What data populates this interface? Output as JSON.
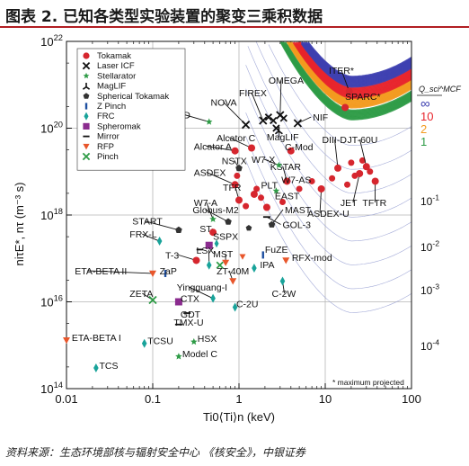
{
  "header": {
    "title": "图表 2. 已知各类型实验装置的聚变三乘积数据"
  },
  "footer": {
    "source": "资料来源：生态环境部核与辐射安全中心 《核安全》，中银证券"
  },
  "chart_data": {
    "type": "scatter",
    "xscale": "log",
    "yscale": "log",
    "xlim": [
      0.01,
      100
    ],
    "ylim": [
      100000000000000.0,
      1e+22
    ],
    "xlabel": "Ti0⟨Ti⟩n (keV)",
    "ylabel": "niτE*, nτ (m⁻³ s)",
    "x_ticks": [
      "0.01",
      "0.1",
      "1",
      "10",
      "100"
    ],
    "y_ticks": [
      "10^14",
      "10^16",
      "10^18",
      "10^20",
      "10^22"
    ],
    "right_ticks": [
      "10^-4",
      "10^-3",
      "10^-2",
      "10^-1"
    ],
    "q_legend": {
      "label": "Q_sci^MCF",
      "values": [
        "∞",
        "10",
        "2",
        "1"
      ],
      "colors": [
        "#3d3fb0",
        "#e8242b",
        "#f39a1e",
        "#2e9b46"
      ]
    },
    "note": "* maximum projected",
    "legend": [
      {
        "name": "Tokamak",
        "marker": "circle",
        "color": "#d6262e"
      },
      {
        "name": "Laser ICF",
        "marker": "x",
        "color": "#111111"
      },
      {
        "name": "Stellarator",
        "marker": "star",
        "color": "#2e9b46"
      },
      {
        "name": "MagLIF",
        "marker": "tri",
        "color": "#111111"
      },
      {
        "name": "Spherical Tokamak",
        "marker": "pentagon",
        "color": "#333333"
      },
      {
        "name": "Z Pinch",
        "marker": "vbar",
        "color": "#1e4fa0"
      },
      {
        "name": "FRC",
        "marker": "diamond",
        "color": "#19a39a"
      },
      {
        "name": "Spheromak",
        "marker": "square",
        "color": "#8b2c8f"
      },
      {
        "name": "Mirror",
        "marker": "dash",
        "color": "#111111"
      },
      {
        "name": "RFP",
        "marker": "tridown",
        "color": "#e8562b"
      },
      {
        "name": "Pinch",
        "marker": "x",
        "color": "#2e9b46"
      }
    ],
    "points": [
      {
        "label": "ITER*",
        "x": 19,
        "y": 7e+20,
        "type": "Tokamak",
        "lx": 11,
        "ly": 1.8e+21,
        "anchor": "start"
      },
      {
        "label": "SPARC*",
        "x": 17,
        "y": 3e+20,
        "type": "Tokamak",
        "lx": 17,
        "ly": 4.5e+20,
        "anchor": "start"
      },
      {
        "label": "JT-60U",
        "x": 30,
        "y": 1.3e+19,
        "type": "Tokamak",
        "lx": 18,
        "ly": 4.5e+19,
        "anchor": "start"
      },
      {
        "label": "JET",
        "x": 25,
        "y": 9e+18,
        "type": "Tokamak",
        "lx": 15,
        "ly": 1.6e+18,
        "anchor": "start"
      },
      {
        "label": "TFTR",
        "x": 38,
        "y": 6e+18,
        "type": "Tokamak",
        "lx": 27,
        "ly": 1.6e+18,
        "anchor": "start"
      },
      {
        "label": "DIII-D",
        "x": 14,
        "y": 1.2e+19,
        "type": "Tokamak",
        "lx": 9.2,
        "ly": 4.5e+19,
        "anchor": "start"
      },
      {
        "label": "ASDEX-U",
        "x": 9,
        "y": 4e+18,
        "type": "Tokamak",
        "lx": 6.2,
        "ly": 9e+17,
        "anchor": "start"
      },
      {
        "label": "C-Mod",
        "x": 4,
        "y": 3e+19,
        "type": "Tokamak",
        "lx": 3.4,
        "ly": 3.1e+19,
        "anchor": "start"
      },
      {
        "label": "KSTAR",
        "x": 3.6,
        "y": 6e+18,
        "type": "Tokamak",
        "lx": 2.3,
        "ly": 1.1e+19,
        "anchor": "start"
      },
      {
        "label": "W7-AS",
        "x": 2.7,
        "y": 3.6e+18,
        "type": "Stellarator",
        "lx": 3.1,
        "ly": 5.5e+18,
        "anchor": "start"
      },
      {
        "label": "EAST",
        "x": 2.1,
        "y": 1.5e+18,
        "type": "Tokamak",
        "lx": 2.6,
        "ly": 2.3e+18,
        "anchor": "start"
      },
      {
        "label": "MAST",
        "x": 2.4,
        "y": 6e+17,
        "type": "Spherical Tokamak",
        "lx": 3.4,
        "ly": 1.1e+18,
        "anchor": "start"
      },
      {
        "label": "W7-X",
        "x": 2.9,
        "y": 1.4e+19,
        "type": "Stellarator",
        "lx": 1.4,
        "ly": 1.6e+19,
        "anchor": "start"
      },
      {
        "label": "NSTX",
        "x": 1.0,
        "y": 1.2e+19,
        "type": "Spherical Tokamak",
        "lx": 0.63,
        "ly": 1.5e+19,
        "anchor": "start"
      },
      {
        "label": "PLT",
        "x": 1.5,
        "y": 3e+18,
        "type": "Tokamak",
        "lx": 1.8,
        "ly": 4.1e+18,
        "anchor": "start"
      },
      {
        "label": "ASDEX",
        "x": 0.9,
        "y": 5e+18,
        "type": "Tokamak",
        "lx": 0.3,
        "ly": 8e+18,
        "anchor": "start"
      },
      {
        "label": "TFR",
        "x": 1.0,
        "y": 2.2e+18,
        "type": "Tokamak",
        "lx": 0.65,
        "ly": 3.6e+18,
        "anchor": "start"
      },
      {
        "label": "W7-A",
        "x": 0.5,
        "y": 8e+17,
        "type": "Stellarator",
        "lx": 0.3,
        "ly": 1.6e+18,
        "anchor": "start"
      },
      {
        "label": "Globus-M2",
        "x": 0.75,
        "y": 7e+17,
        "type": "Spherical Tokamak",
        "lx": 0.29,
        "ly": 1.1e+18,
        "anchor": "start"
      },
      {
        "label": "Alcator C",
        "x": 1.4,
        "y": 3.5e+19,
        "type": "Tokamak",
        "lx": 0.55,
        "ly": 5e+19,
        "anchor": "start"
      },
      {
        "label": "Alcator A",
        "x": 0.9,
        "y": 3e+19,
        "type": "Tokamak",
        "lx": 0.3,
        "ly": 3.2e+19,
        "anchor": "start"
      },
      {
        "label": "MagLIF",
        "x": 2.9,
        "y": 9e+19,
        "type": "MagLIF",
        "lx": 2.1,
        "ly": 5.2e+19,
        "anchor": "start"
      },
      {
        "label": "NIF",
        "x": 4.8,
        "y": 1.3e+20,
        "type": "Laser ICF",
        "lx": 7.2,
        "ly": 1.5e+20,
        "anchor": "start"
      },
      {
        "label": "OMEGA",
        "x": 3.0,
        "y": 2e+20,
        "type": "Laser ICF",
        "lx": 2.2,
        "ly": 1.05e+21,
        "anchor": "start"
      },
      {
        "label": "FIREX",
        "x": 1.9,
        "y": 1.5e+20,
        "type": "Laser ICF",
        "lx": 1.0,
        "ly": 5.5e+20,
        "anchor": "start"
      },
      {
        "label": "NOVA",
        "x": 1.2,
        "y": 1.2e+20,
        "type": "Laser ICF",
        "lx": 0.47,
        "ly": 3.3e+20,
        "anchor": "start"
      },
      {
        "label": "LHD",
        "x": 0.45,
        "y": 1.4e+20,
        "type": "Stellarator",
        "lx": 0.165,
        "ly": 1.7e+20,
        "anchor": "start"
      },
      {
        "label": "START",
        "x": 0.2,
        "y": 4.5e+17,
        "type": "Spherical Tokamak",
        "lx": 0.058,
        "ly": 6e+17,
        "anchor": "start"
      },
      {
        "label": "FRX-L",
        "x": 0.12,
        "y": 2.5e+17,
        "type": "FRC",
        "lx": 0.054,
        "ly": 3e+17,
        "anchor": "start"
      },
      {
        "label": "ST",
        "x": 0.5,
        "y": 4e+17,
        "type": "Tokamak",
        "lx": 0.35,
        "ly": 4e+17,
        "anchor": "start"
      },
      {
        "label": "SSPX",
        "x": 0.45,
        "y": 2e+17,
        "type": "Spheromak",
        "lx": 0.5,
        "ly": 2.7e+17,
        "anchor": "start"
      },
      {
        "label": "T-3",
        "x": 0.32,
        "y": 9e+16,
        "type": "Tokamak",
        "lx": 0.14,
        "ly": 1e+17,
        "anchor": "start"
      },
      {
        "label": "LSX",
        "x": 0.45,
        "y": 7e+16,
        "type": "FRC",
        "lx": 0.32,
        "ly": 1.3e+17,
        "anchor": "start"
      },
      {
        "label": "MST",
        "x": 0.7,
        "y": 8e+16,
        "type": "RFP",
        "lx": 0.5,
        "ly": 1.05e+17,
        "anchor": "start"
      },
      {
        "label": "ZaP",
        "x": 0.14,
        "y": 4.5e+16,
        "type": "Z Pinch",
        "lx": 0.12,
        "ly": 4.3e+16,
        "anchor": "start"
      },
      {
        "label": "ETA-BETA II",
        "x": 0.1,
        "y": 4.5e+16,
        "type": "RFP",
        "lx": 0.0125,
        "ly": 4.3e+16,
        "anchor": "start"
      },
      {
        "label": "ZT-40M",
        "x": 0.85,
        "y": 3e+16,
        "type": "RFP",
        "lx": 0.55,
        "ly": 4.3e+16,
        "anchor": "start"
      },
      {
        "label": "Yingguang-I",
        "x": 0.5,
        "y": 1.2e+16,
        "type": "FRC",
        "lx": 0.19,
        "ly": 1.8e+16,
        "anchor": "start"
      },
      {
        "label": "CTX",
        "x": 0.2,
        "y": 1e+16,
        "type": "Spheromak",
        "lx": 0.21,
        "ly": 1e+16,
        "anchor": "start"
      },
      {
        "label": "ZETA",
        "x": 0.1,
        "y": 1.1e+16,
        "type": "Pinch",
        "lx": 0.054,
        "ly": 1.3e+16,
        "anchor": "start"
      },
      {
        "label": "IPA",
        "x": 1.5,
        "y": 6e+16,
        "type": "FRC",
        "lx": 1.75,
        "ly": 6e+16,
        "anchor": "start"
      },
      {
        "label": "FuZE",
        "x": 1.9,
        "y": 1.2e+17,
        "type": "Z Pinch",
        "lx": 2.0,
        "ly": 1.35e+17,
        "anchor": "start"
      },
      {
        "label": "RFX-mod",
        "x": 3.5,
        "y": 9e+16,
        "type": "RFP",
        "lx": 4.1,
        "ly": 8.8e+16,
        "anchor": "start"
      },
      {
        "label": "C-2W",
        "x": 3.2,
        "y": 3e+16,
        "type": "FRC",
        "lx": 2.4,
        "ly": 1.3e+16,
        "anchor": "start"
      },
      {
        "label": "C-2U",
        "x": 0.9,
        "y": 7500000000000000.0,
        "type": "FRC",
        "lx": 0.93,
        "ly": 7500000000000000.0,
        "anchor": "start"
      },
      {
        "label": "GOL-3",
        "x": 2.1,
        "y": 9e+17,
        "type": "Mirror",
        "lx": 3.2,
        "ly": 5e+17,
        "anchor": "start"
      },
      {
        "label": "GDT",
        "x": 0.25,
        "y": 5500000000000000.0,
        "type": "Mirror",
        "lx": 0.21,
        "ly": 4300000000000000.0,
        "anchor": "start"
      },
      {
        "label": "TMX-U",
        "x": 0.2,
        "y": 3000000000000000.0,
        "type": "Mirror",
        "lx": 0.175,
        "ly": 2800000000000000.0,
        "anchor": "start"
      },
      {
        "label": "HSX",
        "x": 0.3,
        "y": 1200000000000000.0,
        "type": "Stellarator",
        "lx": 0.33,
        "ly": 1200000000000000.0,
        "anchor": "start"
      },
      {
        "label": "Model C",
        "x": 0.2,
        "y": 550000000000000.0,
        "type": "Stellarator",
        "lx": 0.22,
        "ly": 530000000000000.0,
        "anchor": "start"
      },
      {
        "label": "TCSU",
        "x": 0.08,
        "y": 1100000000000000.0,
        "type": "FRC",
        "lx": 0.087,
        "ly": 1050000000000000.0,
        "anchor": "start"
      },
      {
        "label": "TCS",
        "x": 0.022,
        "y": 300000000000000.0,
        "type": "FRC",
        "lx": 0.024,
        "ly": 285000000000000.0,
        "anchor": "start"
      },
      {
        "label": "ETA-BETA I",
        "x": 0.01,
        "y": 1300000000000000.0,
        "type": "RFP",
        "lx": 0.0115,
        "ly": 1250000000000000.0,
        "anchor": "start"
      }
    ],
    "cloud_points": [
      {
        "x": 20,
        "y": 1.6e+19,
        "type": "Tokamak"
      },
      {
        "x": 22,
        "y": 8e+18,
        "type": "Tokamak"
      },
      {
        "x": 27,
        "y": 1.8e+19,
        "type": "Tokamak"
      },
      {
        "x": 33,
        "y": 1e+19,
        "type": "Tokamak"
      },
      {
        "x": 18,
        "y": 5e+18,
        "type": "Tokamak"
      },
      {
        "x": 12,
        "y": 7e+18,
        "type": "Tokamak"
      },
      {
        "x": 7,
        "y": 6e+18,
        "type": "Tokamak"
      },
      {
        "x": 5,
        "y": 4e+18,
        "type": "Tokamak"
      },
      {
        "x": 1.8,
        "y": 2.5e+18,
        "type": "Tokamak"
      },
      {
        "x": 1.2,
        "y": 1.6e+18,
        "type": "Tokamak"
      },
      {
        "x": 1.6,
        "y": 4e+18,
        "type": "Tokamak"
      },
      {
        "x": 3.2,
        "y": 2e+18,
        "type": "Tokamak"
      },
      {
        "x": 0.95,
        "y": 8e+18,
        "type": "Tokamak"
      },
      {
        "x": 2.5,
        "y": 1.5e+20,
        "type": "Laser ICF"
      },
      {
        "x": 2.7,
        "y": 1e+20,
        "type": "Laser ICF"
      },
      {
        "x": 3.3,
        "y": 1.7e+20,
        "type": "Laser ICF"
      },
      {
        "x": 2.2,
        "y": 1.8e+20,
        "type": "Laser ICF"
      },
      {
        "x": 0.55,
        "y": 2.2e+17,
        "type": "FRC"
      },
      {
        "x": 0.35,
        "y": 1.6e+17,
        "type": "Mirror"
      },
      {
        "x": 1.1,
        "y": 1.1e+17,
        "type": "RFP"
      },
      {
        "x": 1.3,
        "y": 5e+17,
        "type": "Spherical Tokamak"
      },
      {
        "x": 0.6,
        "y": 7e+16,
        "type": "Pinch"
      }
    ]
  }
}
